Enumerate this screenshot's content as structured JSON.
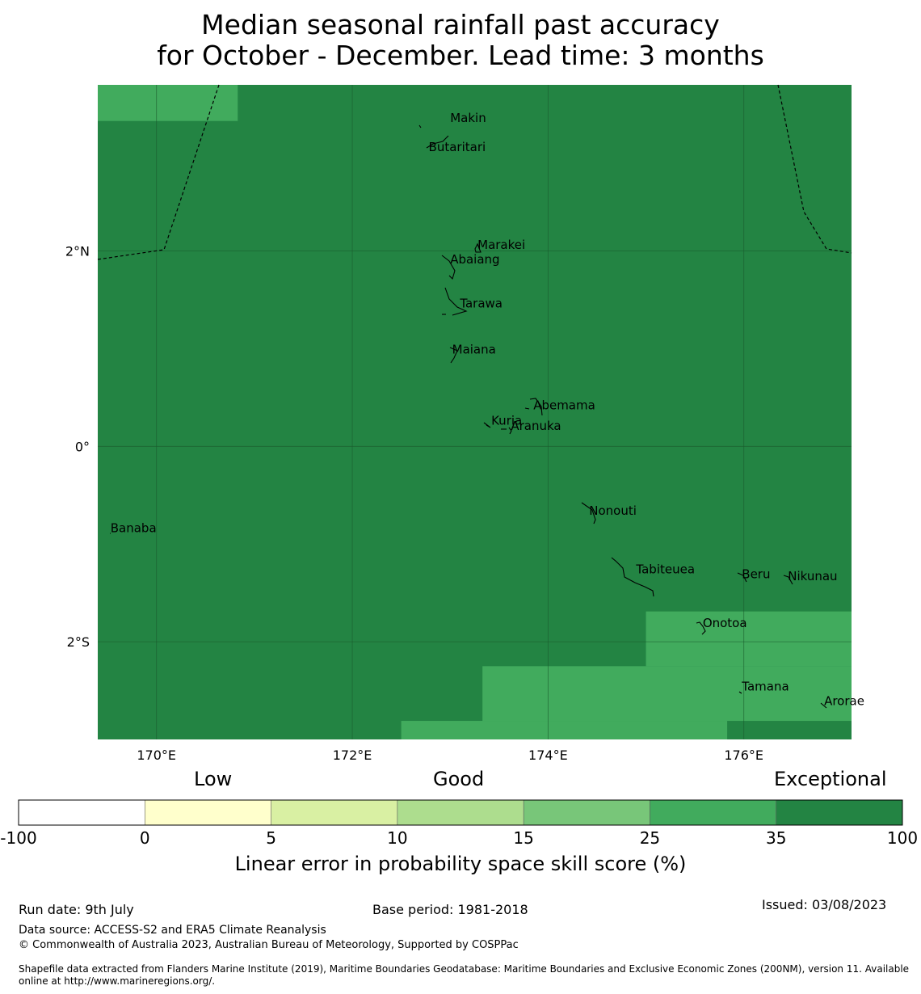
{
  "title": {
    "line1": "Median seasonal rainfall past accuracy",
    "line2": "for October - December. Lead time: 3 months"
  },
  "map": {
    "lon_range": [
      169.4,
      177.1
    ],
    "lat_range": [
      -3.0,
      3.7
    ],
    "lon_ticks": [
      170,
      172,
      174,
      176
    ],
    "lat_ticks": [
      2,
      0,
      -2
    ],
    "lon_tick_labels": [
      "170°E",
      "172°E",
      "174°E",
      "176°E"
    ],
    "lat_tick_labels": [
      "2°N",
      "0°",
      "2°S"
    ],
    "base_category": ">35",
    "skill_regions": [
      {
        "category": "25-35",
        "lon": [
          169.4,
          170.83
        ],
        "lat": [
          3.33,
          3.7
        ]
      },
      {
        "category": "25-35",
        "lon": [
          175.0,
          177.1
        ],
        "lat": [
          -2.25,
          -1.69
        ]
      },
      {
        "category": "25-35",
        "lon": [
          173.33,
          177.1
        ],
        "lat": [
          -2.81,
          -2.25
        ]
      },
      {
        "category": "25-35",
        "lon": [
          172.5,
          175.83
        ],
        "lat": [
          -3.0,
          -2.81
        ]
      }
    ],
    "islands": [
      {
        "name": "Makin",
        "lon": 173.0,
        "lat": 3.32
      },
      {
        "name": "Butaritari",
        "lon": 172.78,
        "lat": 3.02
      },
      {
        "name": "Marakei",
        "lon": 173.28,
        "lat": 2.02
      },
      {
        "name": "Abaiang",
        "lon": 173.0,
        "lat": 1.87
      },
      {
        "name": "Tarawa",
        "lon": 173.1,
        "lat": 1.42
      },
      {
        "name": "Maiana",
        "lon": 173.02,
        "lat": 0.95
      },
      {
        "name": "Abemama",
        "lon": 173.85,
        "lat": 0.38
      },
      {
        "name": "Kuria",
        "lon": 173.42,
        "lat": 0.22
      },
      {
        "name": "Aranuka",
        "lon": 173.62,
        "lat": 0.17
      },
      {
        "name": "Nonouti",
        "lon": 174.42,
        "lat": -0.7
      },
      {
        "name": "Banaba",
        "lon": 169.53,
        "lat": -0.88
      },
      {
        "name": "Tabiteuea",
        "lon": 174.9,
        "lat": -1.3
      },
      {
        "name": "Beru",
        "lon": 175.98,
        "lat": -1.35
      },
      {
        "name": "Nikunau",
        "lon": 176.45,
        "lat": -1.37
      },
      {
        "name": "Onotoa",
        "lon": 175.58,
        "lat": -1.85
      },
      {
        "name": "Tamana",
        "lon": 175.98,
        "lat": -2.5
      },
      {
        "name": "Arorae",
        "lon": 176.82,
        "lat": -2.65
      }
    ]
  },
  "colorbar": {
    "categories": [
      {
        "from": "-100",
        "to": "0",
        "color": "#ffffff"
      },
      {
        "from": "0",
        "to": "5",
        "color": "#ffffcc"
      },
      {
        "from": "5",
        "to": "10",
        "color": "#d9f0a3"
      },
      {
        "from": "10",
        "to": "15",
        "color": "#addd8e"
      },
      {
        "from": "15",
        "to": "25",
        "color": "#78c679"
      },
      {
        "from": "25",
        "to": "35",
        "color": "#41ab5d"
      },
      {
        "from": "35",
        "to": "100",
        "color": "#238443"
      }
    ],
    "tick_labels": [
      "-100",
      "0",
      "5",
      "10",
      "15",
      "25",
      "35",
      "100"
    ],
    "category_labels": {
      "low": "Low",
      "good": "Good",
      "exceptional": "Exceptional"
    },
    "axis_label": "Linear error in probability space skill score (%)"
  },
  "footer": {
    "run_date": "Run date: 9th July",
    "base_period": "Base period: 1981-2018",
    "issued": "Issued: 03/08/2023",
    "data_source": "Data source: ACCESS-S2 and ERA5 Climate Reanalysis",
    "copyright": "© Commonwealth of Australia 2023, Australian Bureau of Meteorology, Supported by COSPPac",
    "shapefile_line1": "Shapefile data extracted from Flanders Marine Institute (2019), Maritime Boundaries Geodatabase: Maritime Boundaries and Exclusive Economic Zones (200NM), version 11. Available",
    "shapefile_line2": "online at http://www.marineregions.org/."
  },
  "colors": {
    "exceptional": "#238443",
    "very_good": "#41ab5d",
    "gridline": "#1a5a2c",
    "coast": "#000000"
  }
}
